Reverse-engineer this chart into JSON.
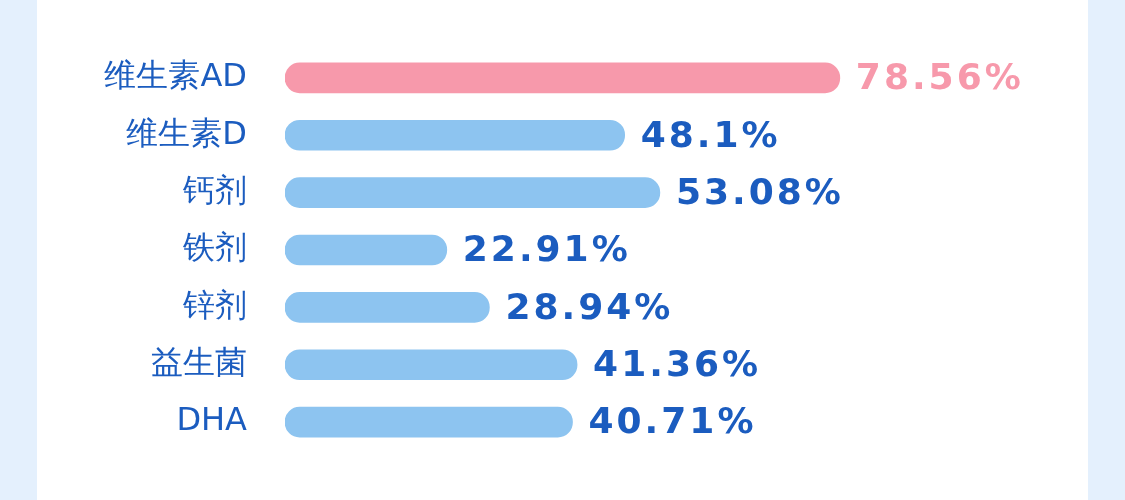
{
  "chart_data": {
    "type": "bar",
    "orientation": "horizontal",
    "categories": [
      "维生素AD",
      "维生素D",
      "钙剂",
      "铁剂",
      "锌剂",
      "益生菌",
      "DHA"
    ],
    "values": [
      78.56,
      48.1,
      53.08,
      22.91,
      28.94,
      41.36,
      40.71
    ],
    "value_labels": [
      "78.56%",
      "48.1%",
      "53.08%",
      "22.91%",
      "28.94%",
      "41.36%",
      "40.71%"
    ],
    "colors": [
      "#f799ab",
      "#8dc4f0",
      "#8dc4f0",
      "#8dc4f0",
      "#8dc4f0",
      "#8dc4f0",
      "#8dc4f0"
    ],
    "tick_labels": "y",
    "grid": false,
    "legend": false
  }
}
